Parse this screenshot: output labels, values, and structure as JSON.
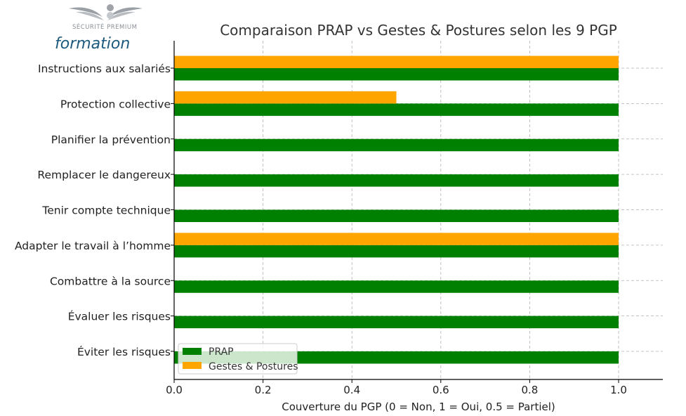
{
  "logo": {
    "line1": "SÉCURITÉ PREMIUM",
    "line2": "formation"
  },
  "chart_data": {
    "type": "bar",
    "orientation": "horizontal",
    "title": "Comparaison PRAP vs Gestes & Postures selon les 9 PGP",
    "xlabel": "Couverture du PGP (0 = Non, 1 = Oui, 0.5 = Partiel)",
    "ylabel": "",
    "xlim": [
      0,
      1.1
    ],
    "xticks": [
      "0.0",
      "0.2",
      "0.4",
      "0.6",
      "0.8",
      "1.0"
    ],
    "grid": true,
    "legend_position": "lower-left",
    "categories": [
      "Éviter les risques",
      "Évaluer les risques",
      "Combattre à la source",
      "Adapter le travail à l’homme",
      "Tenir compte technique",
      "Remplacer le dangereux",
      "Planifier la prévention",
      "Protection collective",
      "Instructions aux salariés"
    ],
    "series": [
      {
        "name": "PRAP",
        "color": "#008000",
        "values": [
          1,
          1,
          1,
          1,
          1,
          1,
          1,
          1,
          1
        ]
      },
      {
        "name": "Gestes & Postures",
        "color": "#FFA500",
        "values": [
          0,
          0,
          0,
          1,
          0,
          0,
          0,
          0.5,
          1
        ]
      }
    ]
  }
}
